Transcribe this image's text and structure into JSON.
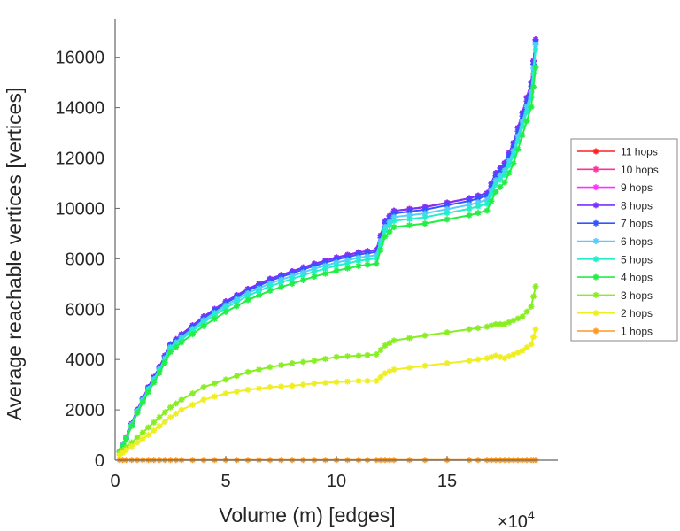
{
  "chart_data": {
    "type": "line",
    "title": "",
    "xlabel": "Volume (m) [edges]",
    "ylabel": "Average reachable vertices [vertices]",
    "x_multiplier": "×10",
    "x_multiplier_exp": "4",
    "xlim": [
      0,
      20
    ],
    "ylim": [
      0,
      17500
    ],
    "xticks": [
      0,
      5,
      10,
      15
    ],
    "xtick_labels": [
      "0",
      "5",
      "10",
      "15"
    ],
    "yticks": [
      0,
      2000,
      4000,
      6000,
      8000,
      10000,
      12000,
      14000,
      16000
    ],
    "ytick_labels": [
      "0",
      "2000",
      "4000",
      "6000",
      "8000",
      "10000",
      "12000",
      "14000",
      "16000"
    ],
    "grid": false,
    "legend_position": "right",
    "marker": "asterisk",
    "x": [
      0.2,
      0.5,
      1,
      1.5,
      2,
      2.5,
      3,
      4,
      5,
      6,
      7,
      8,
      9,
      10,
      11,
      11.8,
      12.2,
      12.6,
      14,
      16,
      16.8,
      17.2,
      17.6,
      18,
      18.4,
      18.8,
      19
    ],
    "series": [
      {
        "name": "11 hops",
        "color": "#ff2020",
        "values": [
          350,
          900,
          2000,
          2900,
          3700,
          4600,
          5000,
          5700,
          6300,
          6800,
          7200,
          7500,
          7800,
          8050,
          8250,
          8350,
          9500,
          9900,
          10050,
          10400,
          10600,
          11400,
          11800,
          12600,
          13800,
          15000,
          16700
        ]
      },
      {
        "name": "10 hops",
        "color": "#ff3399",
        "values": [
          350,
          900,
          2000,
          2900,
          3700,
          4600,
          5000,
          5700,
          6300,
          6800,
          7200,
          7500,
          7800,
          8050,
          8250,
          8350,
          9500,
          9900,
          10050,
          10400,
          10600,
          11400,
          11800,
          12600,
          13800,
          15000,
          16700
        ]
      },
      {
        "name": "9 hops",
        "color": "#ff33ff",
        "values": [
          350,
          900,
          2000,
          2900,
          3700,
          4600,
          5000,
          5700,
          6300,
          6800,
          7200,
          7500,
          7800,
          8050,
          8250,
          8350,
          9500,
          9900,
          10050,
          10400,
          10600,
          11400,
          11800,
          12600,
          13800,
          15000,
          16700
        ]
      },
      {
        "name": "8 hops",
        "color": "#7733ff",
        "values": [
          350,
          900,
          2000,
          2900,
          3700,
          4600,
          5000,
          5700,
          6300,
          6800,
          7200,
          7500,
          7800,
          8050,
          8250,
          8350,
          9500,
          9900,
          10050,
          10400,
          10600,
          11400,
          11800,
          12600,
          13800,
          15000,
          16700
        ]
      },
      {
        "name": "7 hops",
        "color": "#3355ff",
        "values": [
          347,
          891,
          1980,
          2871,
          3663,
          4554,
          4950,
          5643,
          6237,
          6732,
          7128,
          7425,
          7722,
          7970,
          8168,
          8267,
          9405,
          9801,
          9950,
          10296,
          10494,
          11286,
          11682,
          12474,
          13662,
          14850,
          16600
        ]
      },
      {
        "name": "6 hops",
        "color": "#55ccff",
        "values": [
          341,
          878,
          1950,
          2828,
          3608,
          4485,
          4875,
          5558,
          6143,
          6630,
          7020,
          7313,
          7605,
          7849,
          8044,
          8141,
          9263,
          9653,
          9799,
          10140,
          10335,
          11115,
          11505,
          12285,
          13455,
          14625,
          16500
        ]
      },
      {
        "name": "5 hops",
        "color": "#22eecc",
        "values": [
          336,
          864,
          1920,
          2784,
          3552,
          4416,
          4800,
          5472,
          6048,
          6528,
          6912,
          7200,
          7488,
          7728,
          7920,
          8016,
          9120,
          9504,
          9648,
          9984,
          10176,
          10944,
          11328,
          12096,
          13248,
          14400,
          16300
        ]
      },
      {
        "name": "4 hops",
        "color": "#22ee44",
        "values": [
          327,
          842,
          1870,
          2712,
          3460,
          4301,
          4675,
          5330,
          5891,
          6358,
          6732,
          7013,
          7293,
          7527,
          7714,
          7807,
          8883,
          9257,
          9397,
          9724,
          9911,
          10659,
          11033,
          11781,
          12903,
          14025,
          15600
        ]
      },
      {
        "name": "3 hops",
        "color": "#88ee22",
        "values": [
          300,
          500,
          900,
          1300,
          1700,
          2100,
          2400,
          2900,
          3200,
          3500,
          3700,
          3850,
          3950,
          4100,
          4150,
          4200,
          4550,
          4750,
          4950,
          5200,
          5300,
          5400,
          5400,
          5550,
          5700,
          6100,
          6900
        ]
      },
      {
        "name": "2 hops",
        "color": "#eeee22",
        "values": [
          200,
          400,
          700,
          1000,
          1350,
          1700,
          2000,
          2400,
          2650,
          2800,
          2900,
          2950,
          3050,
          3100,
          3150,
          3150,
          3450,
          3600,
          3750,
          3950,
          4050,
          4150,
          4050,
          4200,
          4350,
          4600,
          5200
        ]
      },
      {
        "name": "1 hops",
        "color": "#ff9922",
        "values": [
          10,
          10,
          10,
          10,
          10,
          10,
          10,
          10,
          10,
          10,
          10,
          10,
          10,
          10,
          10,
          10,
          10,
          10,
          10,
          10,
          10,
          10,
          10,
          10,
          10,
          10,
          10
        ]
      }
    ]
  }
}
